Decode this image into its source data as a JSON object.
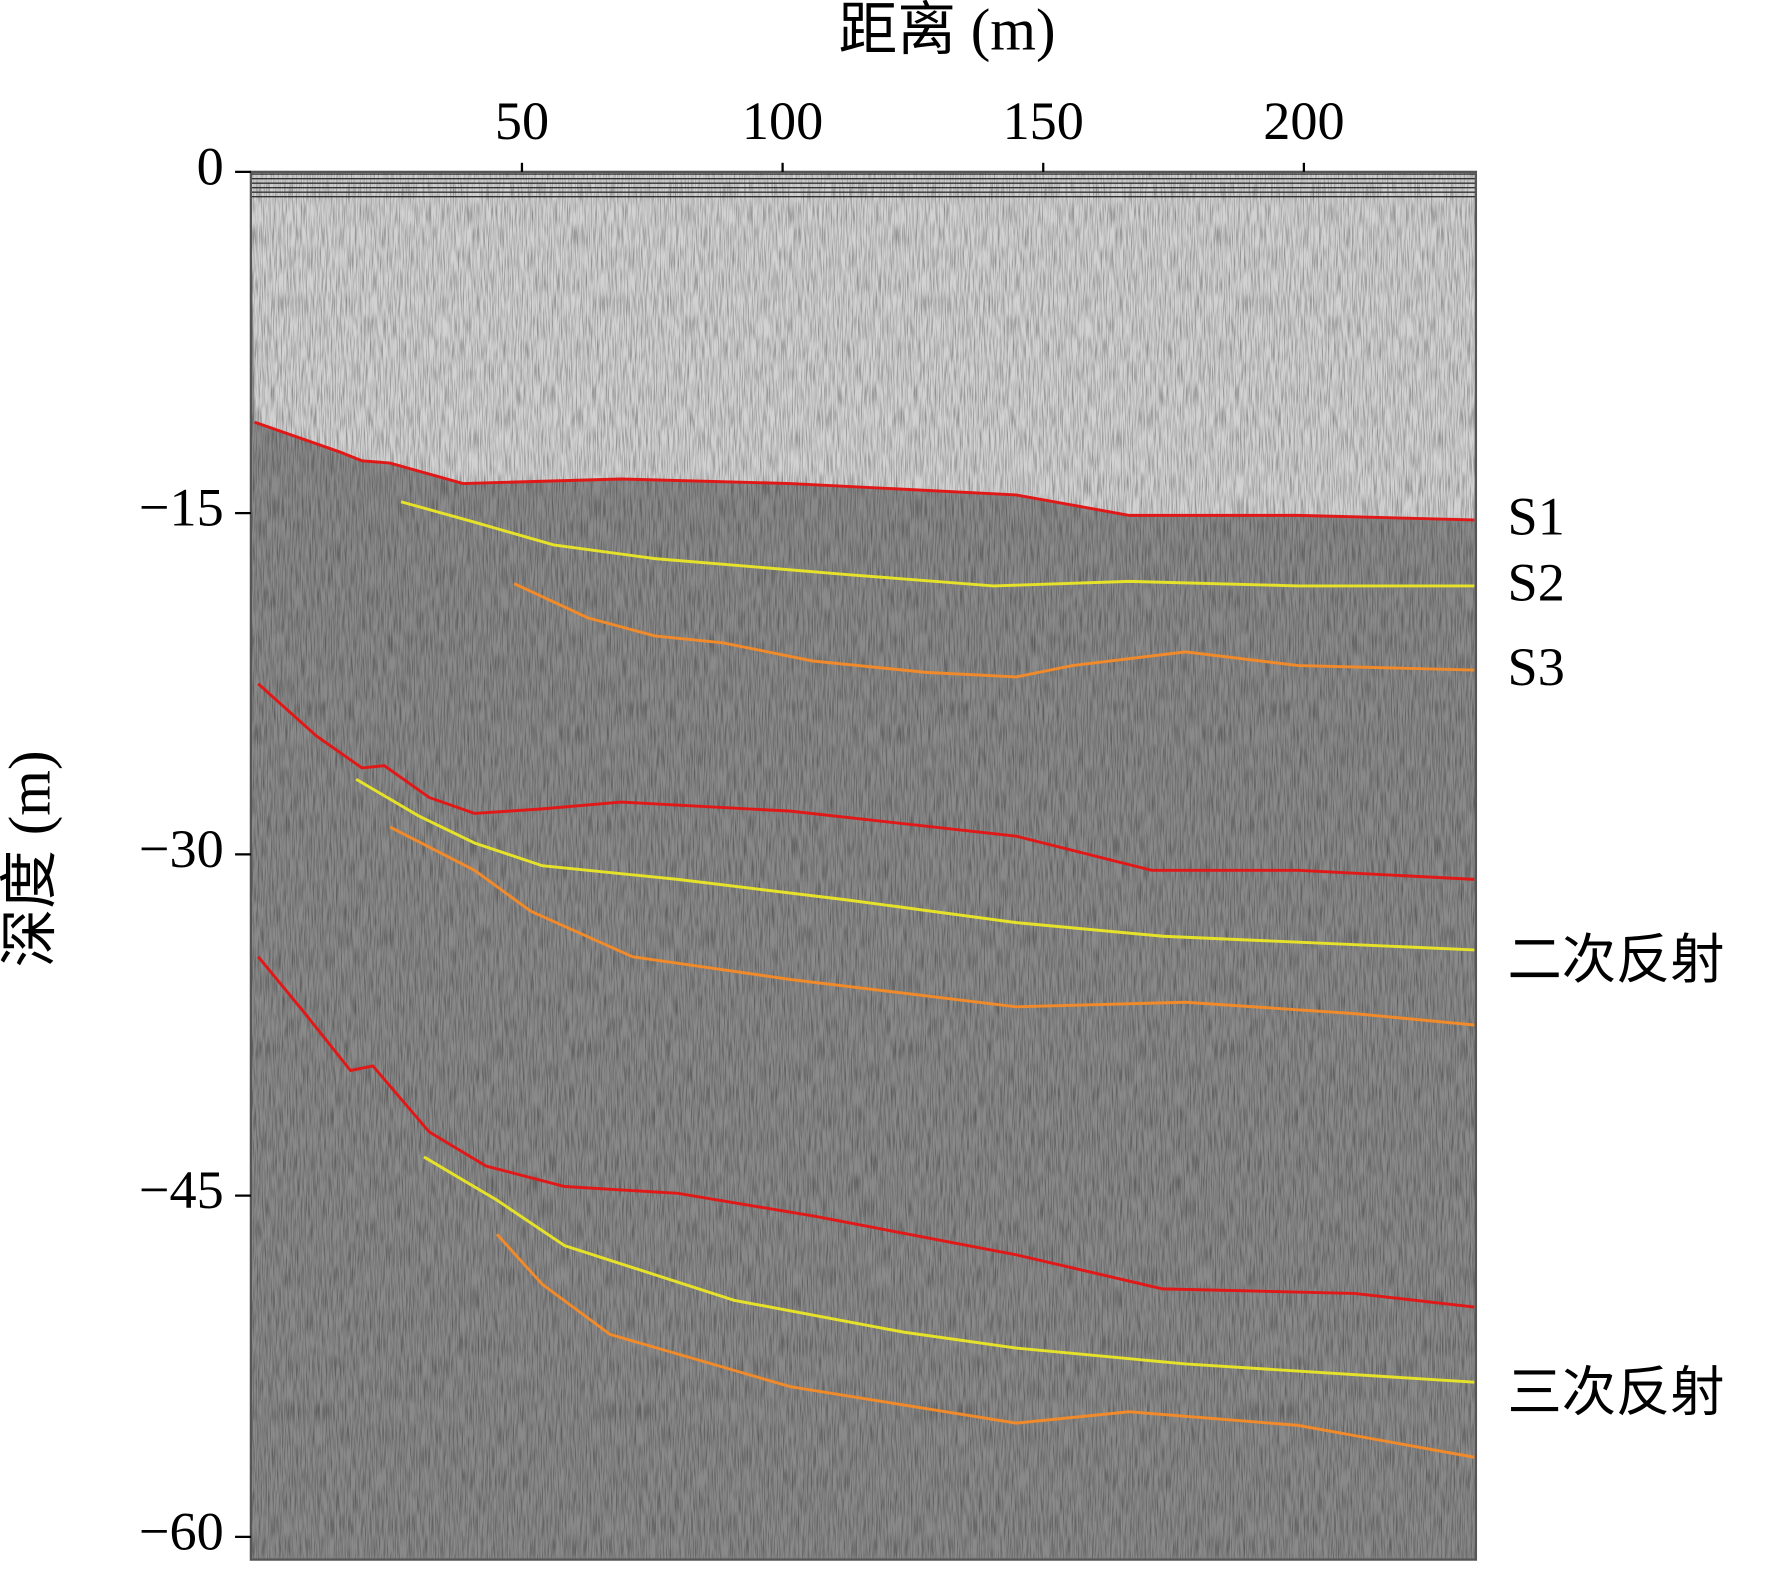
{
  "chart_data": {
    "type": "line",
    "x_label": "距离 (m)",
    "y_label": "深度 (m)",
    "xlim": [
      -2,
      233
    ],
    "ylim": [
      -61,
      0
    ],
    "xticks": [
      50,
      100,
      150,
      200
    ],
    "yticks": [
      0,
      {
        "value": -15,
        "label": "−15"
      },
      {
        "value": -30,
        "label": "−30"
      },
      {
        "value": -45,
        "label": "−45"
      },
      {
        "value": -60,
        "label": "−60"
      }
    ],
    "series": [
      {
        "name": "S1",
        "color": "#e01818",
        "x": [
          -1.3,
          14.9,
          19.3,
          24.7,
          38.7,
          69.0,
          101.5,
          144.8,
          166.5,
          198.9,
          232.7
        ],
        "values": [
          -11.0,
          -12.3,
          -12.7,
          -12.8,
          -13.7,
          -13.5,
          -13.7,
          -14.2,
          -15.1,
          -15.1,
          -15.3
        ]
      },
      {
        "name": "S2",
        "color": "#e6e22a",
        "x": [
          26.8,
          40.9,
          56.1,
          75.5,
          112.3,
          140.5,
          166.5,
          198.9,
          232.7
        ],
        "values": [
          -14.5,
          -15.4,
          -16.4,
          -17.0,
          -17.7,
          -18.2,
          -18.0,
          -18.2,
          -18.2
        ]
      },
      {
        "name": "S3",
        "color": "#f08a2a",
        "x": [
          48.5,
          62.6,
          75.5,
          88.5,
          105.8,
          127.5,
          144.8,
          155.6,
          177.3,
          198.9,
          232.7
        ],
        "values": [
          -18.1,
          -19.6,
          -20.4,
          -20.7,
          -21.5,
          -22.0,
          -22.2,
          -21.7,
          -21.1,
          -21.7,
          -21.9
        ]
      },
      {
        "color": "#e01818",
        "x": [
          -0.6,
          10.6,
          19.3,
          23.6,
          32.2,
          40.9,
          53.9,
          69.0,
          101.5,
          144.8,
          170.8,
          198.9,
          232.7
        ],
        "values": [
          -22.5,
          -24.8,
          -26.2,
          -26.1,
          -27.5,
          -28.2,
          -28.0,
          -27.7,
          -28.1,
          -29.2,
          -30.7,
          -30.7,
          -31.1
        ]
      },
      {
        "color": "#e6e22a",
        "x": [
          18.2,
          30.1,
          40.9,
          53.9,
          79.9,
          112.3,
          144.8,
          173.0,
          232.7
        ],
        "values": [
          -26.7,
          -28.3,
          -29.5,
          -30.5,
          -31.1,
          -32.0,
          -33.0,
          -33.6,
          -34.2
        ]
      },
      {
        "color": "#f08a2a",
        "x": [
          24.7,
          40.9,
          51.7,
          71.2,
          101.5,
          144.8,
          177.3,
          209.7,
          232.7
        ],
        "values": [
          -28.8,
          -30.7,
          -32.5,
          -34.5,
          -35.5,
          -36.7,
          -36.5,
          -37.0,
          -37.5
        ]
      },
      {
        "color": "#e01818",
        "x": [
          -0.6,
          8.4,
          17.1,
          21.4,
          32.2,
          43.1,
          58.2,
          79.9,
          106.0,
          144.8,
          172.9,
          209.7,
          232.7
        ],
        "values": [
          -34.5,
          -37.0,
          -39.5,
          -39.3,
          -42.2,
          -43.7,
          -44.6,
          -44.9,
          -45.9,
          -47.6,
          -49.1,
          -49.3,
          -49.9
        ]
      },
      {
        "color": "#e6e22a",
        "x": [
          31.2,
          45.2,
          58.2,
          90.7,
          123.2,
          144.8,
          177.3,
          232.7
        ],
        "values": [
          -43.3,
          -45.2,
          -47.2,
          -49.6,
          -51.0,
          -51.7,
          -52.4,
          -53.2
        ]
      },
      {
        "color": "#f08a2a",
        "x": [
          45.2,
          53.9,
          66.9,
          101.5,
          144.8,
          166.5,
          198.9,
          232.7
        ],
        "values": [
          -46.7,
          -48.9,
          -51.1,
          -53.4,
          -55.0,
          -54.5,
          -55.1,
          -56.5
        ]
      }
    ],
    "annotations": [
      "二次反射",
      "三次反射"
    ]
  }
}
